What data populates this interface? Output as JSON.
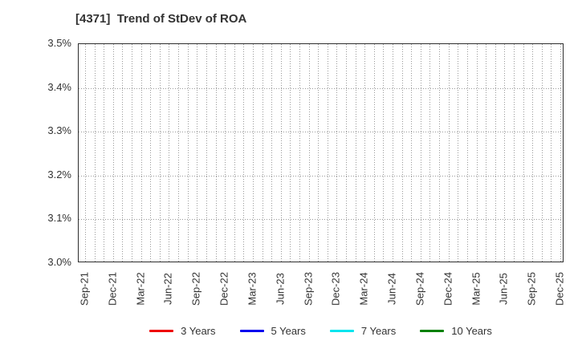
{
  "chart_data": {
    "type": "line",
    "title": "[4371]  Trend of StDev of ROA",
    "x_axis": {
      "unit": "months",
      "first_month": "Sep-21",
      "last_month": "Dec-25",
      "months_total": 52,
      "label_every_n_months": 3,
      "tick_labels": [
        "Sep-21",
        "Dec-21",
        "Mar-22",
        "Jun-22",
        "Sep-22",
        "Dec-22",
        "Mar-23",
        "Jun-23",
        "Sep-23",
        "Dec-23",
        "Mar-24",
        "Jun-24",
        "Sep-24",
        "Dec-24",
        "Mar-25",
        "Jun-25",
        "Sep-25",
        "Dec-25"
      ]
    },
    "y_axis": {
      "min": 3.0,
      "max": 3.5,
      "step": 0.1,
      "unit": "%",
      "tick_labels": [
        "3.0%",
        "3.1%",
        "3.2%",
        "3.3%",
        "3.4%",
        "3.5%"
      ]
    },
    "grid": {
      "visible": true,
      "style": "dotted",
      "color": "#999999",
      "vertical_spacing": "monthly",
      "horizontal_spacing": 0.1
    },
    "series": [
      {
        "name": "3 Years",
        "color": "#ee0000",
        "values": []
      },
      {
        "name": "5 Years",
        "color": "#0000ee",
        "values": []
      },
      {
        "name": "7 Years",
        "color": "#00e5ee",
        "values": []
      },
      {
        "name": "10 Years",
        "color": "#008000",
        "values": []
      }
    ],
    "legend": {
      "position": "bottom",
      "labels": [
        "3 Years",
        "5 Years",
        "7 Years",
        "10 Years"
      ]
    }
  }
}
